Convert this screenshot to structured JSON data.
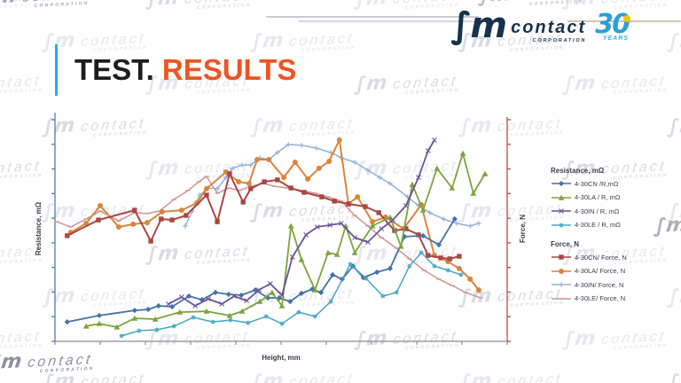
{
  "header": {
    "logo": {
      "brand_script": "∫m",
      "brand_word": "contact",
      "brand_sub": "CORPORATION",
      "badge_number": "30",
      "badge_word": "YEARS"
    }
  },
  "title": {
    "part1": "TEST.",
    "part2": "RESULTS"
  },
  "watermark": {
    "brand_script": "∫m",
    "word": "contact",
    "sub": "CORPORATION"
  },
  "chart_data": {
    "type": "line",
    "title": "",
    "xlabel": "Height, mm",
    "y_left_label": "Resistance, mΩ",
    "y_right_label": "Force, N",
    "grid": false,
    "legend_position": "right",
    "axis_ticks": {
      "x_tick_count": 11,
      "y_left_tick_count": 10,
      "y_right_tick_count": 10,
      "numeric_tick_labels_shown": false
    },
    "coordinate_note": "Axes have no numeric labels in the image; series points are normalized 0-100 fractions of the plot area (x: left to right, y: bottom to top).",
    "axis_colors": {
      "left": "#4f7cb5",
      "right": "#be4b48",
      "bottom": "#8c8c8c"
    },
    "legend": {
      "groups": [
        {
          "header": "Resistance, mΩ",
          "entry_keys": [
            "r_cn",
            "r_la",
            "r_in",
            "r_le"
          ]
        },
        {
          "header": "Force, N",
          "entry_keys": [
            "f_cn",
            "f_la",
            "f_in",
            "f_le"
          ]
        }
      ]
    },
    "series": [
      {
        "key": "r_cn",
        "label": "4-30CN /R,mΩ",
        "axis": "left",
        "color": "#4572a7",
        "marker": "diamond",
        "width": 1.8,
        "points": [
          [
            2.7,
            8.6
          ],
          [
            9.8,
            11.4
          ],
          [
            17.6,
            13.7
          ],
          [
            20.6,
            14.1
          ],
          [
            22.9,
            15.7
          ],
          [
            25.9,
            15.3
          ],
          [
            29.6,
            20.0
          ],
          [
            32.5,
            18.4
          ],
          [
            35.5,
            21.6
          ],
          [
            38.4,
            20.8
          ],
          [
            41.2,
            20.4
          ],
          [
            44.3,
            22.7
          ],
          [
            47.1,
            19.2
          ],
          [
            49.6,
            19.2
          ],
          [
            52.0,
            17.6
          ],
          [
            54.5,
            21.2
          ],
          [
            56.9,
            23.1
          ],
          [
            58.8,
            21.6
          ],
          [
            61.4,
            29.4
          ],
          [
            63.5,
            27.5
          ],
          [
            65.9,
            33.3
          ],
          [
            68.2,
            28.2
          ],
          [
            71.2,
            30.6
          ],
          [
            74.1,
            32.2
          ],
          [
            77.3,
            46.3
          ],
          [
            81.4,
            46.7
          ],
          [
            84.9,
            42.7
          ],
          [
            88.4,
            54.1
          ]
        ]
      },
      {
        "key": "r_la",
        "label": "4-30LA / R, mΩ",
        "axis": "left",
        "color": "#7ba53e",
        "marker": "triangle",
        "width": 1.8,
        "points": [
          [
            6.9,
            6.7
          ],
          [
            9.8,
            7.8
          ],
          [
            13.7,
            6.3
          ],
          [
            17.6,
            10.2
          ],
          [
            22.2,
            9.8
          ],
          [
            27.6,
            12.9
          ],
          [
            33.5,
            13.3
          ],
          [
            38.6,
            11.4
          ],
          [
            41.4,
            13.3
          ],
          [
            45.3,
            17.6
          ],
          [
            48.0,
            21.6
          ],
          [
            50.2,
            15.7
          ],
          [
            52.2,
            51.0
          ],
          [
            54.5,
            36.1
          ],
          [
            57.5,
            22.7
          ],
          [
            60.4,
            39.2
          ],
          [
            62.4,
            38.4
          ],
          [
            64.3,
            51.0
          ],
          [
            66.3,
            39.2
          ],
          [
            70.2,
            51.0
          ],
          [
            74.1,
            54.9
          ],
          [
            76.5,
            42.0
          ],
          [
            79.0,
            69.4
          ],
          [
            81.4,
            58.0
          ],
          [
            84.5,
            76.5
          ],
          [
            87.8,
            67.8
          ],
          [
            90.2,
            83.1
          ],
          [
            92.5,
            65.5
          ],
          [
            95.1,
            74.1
          ]
        ]
      },
      {
        "key": "r_in",
        "label": "4-30IN / R, mΩ",
        "axis": "left",
        "color": "#6a539e",
        "marker": "x",
        "width": 1.8,
        "points": [
          [
            25.1,
            16.5
          ],
          [
            28.0,
            19.6
          ],
          [
            31.0,
            15.7
          ],
          [
            33.9,
            18.8
          ],
          [
            36.9,
            16.5
          ],
          [
            39.6,
            20.0
          ],
          [
            42.4,
            18.0
          ],
          [
            45.1,
            22.7
          ],
          [
            47.6,
            25.5
          ],
          [
            50.2,
            20.4
          ],
          [
            52.5,
            37.3
          ],
          [
            55.5,
            47.1
          ],
          [
            58.0,
            50.6
          ],
          [
            60.8,
            51.4
          ],
          [
            63.3,
            52.2
          ],
          [
            66.3,
            45.9
          ],
          [
            69.2,
            43.9
          ],
          [
            72.2,
            49.8
          ],
          [
            74.7,
            53.7
          ],
          [
            77.6,
            60.0
          ],
          [
            80.4,
            72.5
          ],
          [
            82.5,
            84.3
          ],
          [
            83.9,
            89.0
          ]
        ]
      },
      {
        "key": "r_le",
        "label": "4-30LE / R, mΩ",
        "axis": "left",
        "color": "#45a6c4",
        "marker": "asterisk",
        "width": 1.5,
        "points": [
          [
            14.7,
            2.4
          ],
          [
            18.6,
            4.7
          ],
          [
            22.5,
            5.1
          ],
          [
            26.3,
            6.7
          ],
          [
            30.6,
            10.6
          ],
          [
            34.9,
            8.6
          ],
          [
            38.8,
            9.4
          ],
          [
            42.7,
            8.2
          ],
          [
            46.7,
            11.0
          ],
          [
            50.2,
            7.8
          ],
          [
            53.9,
            12.9
          ],
          [
            57.5,
            11.0
          ],
          [
            61.0,
            17.6
          ],
          [
            65.3,
            34.1
          ],
          [
            68.8,
            27.8
          ],
          [
            72.5,
            20.0
          ],
          [
            75.5,
            21.6
          ],
          [
            78.4,
            33.3
          ],
          [
            81.0,
            39.2
          ],
          [
            83.9,
            33.3
          ],
          [
            86.9,
            31.4
          ],
          [
            89.8,
            29.4
          ]
        ]
      },
      {
        "key": "f_cn",
        "label": "4-30CN/ Force, N",
        "axis": "right",
        "color": "#aa4643",
        "marker": "square",
        "width": 2,
        "points": [
          [
            2.7,
            46.7
          ],
          [
            9.6,
            53.7
          ],
          [
            17.6,
            58.0
          ],
          [
            21.2,
            44.3
          ],
          [
            23.5,
            54.1
          ],
          [
            25.9,
            53.7
          ],
          [
            29.0,
            55.7
          ],
          [
            33.5,
            64.7
          ],
          [
            35.9,
            52.9
          ],
          [
            38.6,
            74.1
          ],
          [
            41.6,
            61.6
          ],
          [
            43.3,
            67.5
          ],
          [
            46.3,
            70.6
          ],
          [
            49.2,
            71.4
          ],
          [
            52.2,
            67.8
          ],
          [
            55.1,
            65.9
          ],
          [
            59.0,
            63.9
          ],
          [
            61.8,
            62.0
          ],
          [
            64.9,
            60.8
          ],
          [
            68.6,
            59.6
          ],
          [
            71.6,
            56.9
          ],
          [
            75.1,
            49.0
          ],
          [
            77.6,
            49.8
          ],
          [
            80.4,
            47.1
          ],
          [
            82.5,
            38.0
          ],
          [
            85.3,
            36.9
          ],
          [
            87.3,
            36.5
          ],
          [
            89.4,
            37.6
          ]
        ]
      },
      {
        "key": "f_la",
        "label": "4-30LA/ Force, N",
        "axis": "right",
        "color": "#db843d",
        "marker": "circle",
        "width": 2,
        "points": [
          [
            3.5,
            48.2
          ],
          [
            6.9,
            52.2
          ],
          [
            10.0,
            60.0
          ],
          [
            14.1,
            50.6
          ],
          [
            17.3,
            51.8
          ],
          [
            20.4,
            52.5
          ],
          [
            23.7,
            57.3
          ],
          [
            28.0,
            58.0
          ],
          [
            31.4,
            61.2
          ],
          [
            33.5,
            67.5
          ],
          [
            37.8,
            74.9
          ],
          [
            40.6,
            70.6
          ],
          [
            42.9,
            69.8
          ],
          [
            44.7,
            80.4
          ],
          [
            47.3,
            80.4
          ],
          [
            50.6,
            72.5
          ],
          [
            53.1,
            79.2
          ],
          [
            55.9,
            71.8
          ],
          [
            58.4,
            76.5
          ],
          [
            60.6,
            79.6
          ],
          [
            62.9,
            89.0
          ],
          [
            64.9,
            60.8
          ],
          [
            66.9,
            63.9
          ],
          [
            70.2,
            52.9
          ],
          [
            73.1,
            54.9
          ],
          [
            77.1,
            49.8
          ],
          [
            81.0,
            60.4
          ],
          [
            83.9,
            38.0
          ],
          [
            86.9,
            35.3
          ],
          [
            89.4,
            32.2
          ],
          [
            91.8,
            27.5
          ],
          [
            93.7,
            22.7
          ]
        ]
      },
      {
        "key": "f_in",
        "label": "4-30IN/ Force, N",
        "axis": "right",
        "color": "#93b1d7",
        "marker": "plus",
        "width": 1.5,
        "points": [
          [
            28.8,
            51.0
          ],
          [
            30.4,
            57.6
          ],
          [
            32.0,
            64.7
          ],
          [
            33.9,
            67.8
          ],
          [
            35.9,
            67.5
          ],
          [
            37.8,
            72.5
          ],
          [
            39.2,
            76.5
          ],
          [
            41.4,
            78.0
          ],
          [
            43.3,
            78.0
          ],
          [
            45.3,
            81.2
          ],
          [
            47.3,
            80.4
          ],
          [
            49.2,
            83.5
          ],
          [
            51.6,
            87.1
          ],
          [
            54.5,
            86.7
          ],
          [
            57.8,
            85.5
          ],
          [
            61.0,
            83.5
          ],
          [
            63.3,
            81.2
          ],
          [
            66.3,
            79.2
          ],
          [
            69.2,
            75.7
          ],
          [
            71.8,
            72.5
          ],
          [
            74.1,
            69.8
          ],
          [
            78.0,
            63.9
          ],
          [
            80.4,
            60.0
          ],
          [
            82.9,
            56.9
          ],
          [
            85.9,
            54.1
          ],
          [
            88.8,
            52.2
          ],
          [
            91.8,
            51.0
          ],
          [
            93.7,
            52.2
          ]
        ]
      },
      {
        "key": "f_le",
        "label": "4-30LE/ Force, N",
        "axis": "right",
        "color": "#d19392",
        "marker": "dash",
        "width": 1.5,
        "points": [
          [
            0.4,
            52.9
          ],
          [
            3.5,
            50.6
          ],
          [
            6.9,
            54.1
          ],
          [
            10.0,
            57.6
          ],
          [
            14.1,
            53.3
          ],
          [
            17.6,
            56.9
          ],
          [
            20.4,
            56.5
          ],
          [
            23.1,
            57.6
          ],
          [
            26.3,
            62.7
          ],
          [
            29.4,
            66.7
          ],
          [
            31.8,
            70.6
          ],
          [
            33.5,
            72.9
          ],
          [
            35.9,
            65.5
          ],
          [
            38.4,
            67.8
          ],
          [
            40.8,
            66.7
          ],
          [
            43.3,
            68.6
          ],
          [
            46.1,
            69.8
          ],
          [
            48.6,
            68.6
          ],
          [
            51.6,
            67.8
          ],
          [
            54.5,
            66.7
          ],
          [
            57.5,
            65.5
          ],
          [
            60.4,
            63.9
          ],
          [
            63.3,
            62.0
          ],
          [
            66.3,
            55.7
          ],
          [
            69.2,
            51.0
          ],
          [
            72.2,
            45.9
          ],
          [
            75.5,
            41.2
          ],
          [
            78.4,
            36.5
          ],
          [
            81.6,
            31.4
          ],
          [
            84.9,
            27.5
          ],
          [
            87.8,
            24.7
          ],
          [
            90.8,
            21.6
          ],
          [
            94.1,
            19.2
          ]
        ]
      }
    ]
  }
}
